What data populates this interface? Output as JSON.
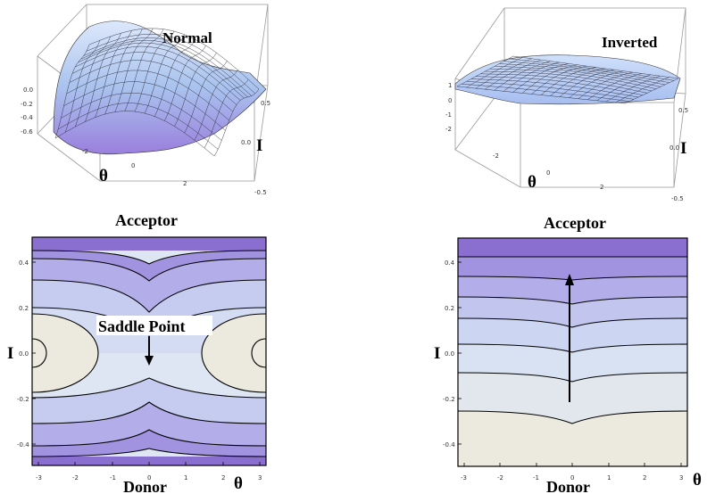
{
  "panels": {
    "normal_surface": {
      "title": "Normal",
      "z_ticks": [
        "0.0",
        "-0.2",
        "-0.4",
        "-0.6"
      ],
      "x_ticks": [
        "-2",
        "0",
        "2"
      ],
      "y_ticks": [
        "0.5",
        "0.0",
        "-0.5"
      ],
      "x_label": "θ",
      "y_label": "I"
    },
    "inverted_surface": {
      "title": "Inverted",
      "z_ticks": [
        "1",
        "0",
        "-1",
        "-2"
      ],
      "x_ticks": [
        "-2",
        "0",
        "2"
      ],
      "y_ticks": [
        "0.5",
        "0.0",
        "-0.5"
      ],
      "x_label": "θ",
      "y_label": "I"
    },
    "normal_contour": {
      "top_label": "Acceptor",
      "bottom_label": "Donor",
      "y_label": "I",
      "x_label": "θ",
      "annotation": "Saddle Point",
      "y_ticks": [
        "0.4",
        "0.2",
        "0.0",
        "-0.2",
        "-0.4"
      ],
      "x_ticks": [
        "-3",
        "-2",
        "-1",
        "0",
        "1",
        "2",
        "3"
      ]
    },
    "inverted_contour": {
      "top_label": "Acceptor",
      "bottom_label": "Donor",
      "y_label": "I",
      "x_label": "θ",
      "y_ticks": [
        "0.4",
        "0.2",
        "0.0",
        "-0.2",
        "-0.4"
      ],
      "x_ticks": [
        "-3",
        "-2",
        "-1",
        "0",
        "1",
        "2",
        "3"
      ]
    }
  },
  "colors": {
    "deep": "#8a6fd1",
    "mid": "#b7b9ec",
    "light": "#dbe6f3",
    "pale": "#ece9de",
    "surface": "#a9c3ee"
  }
}
